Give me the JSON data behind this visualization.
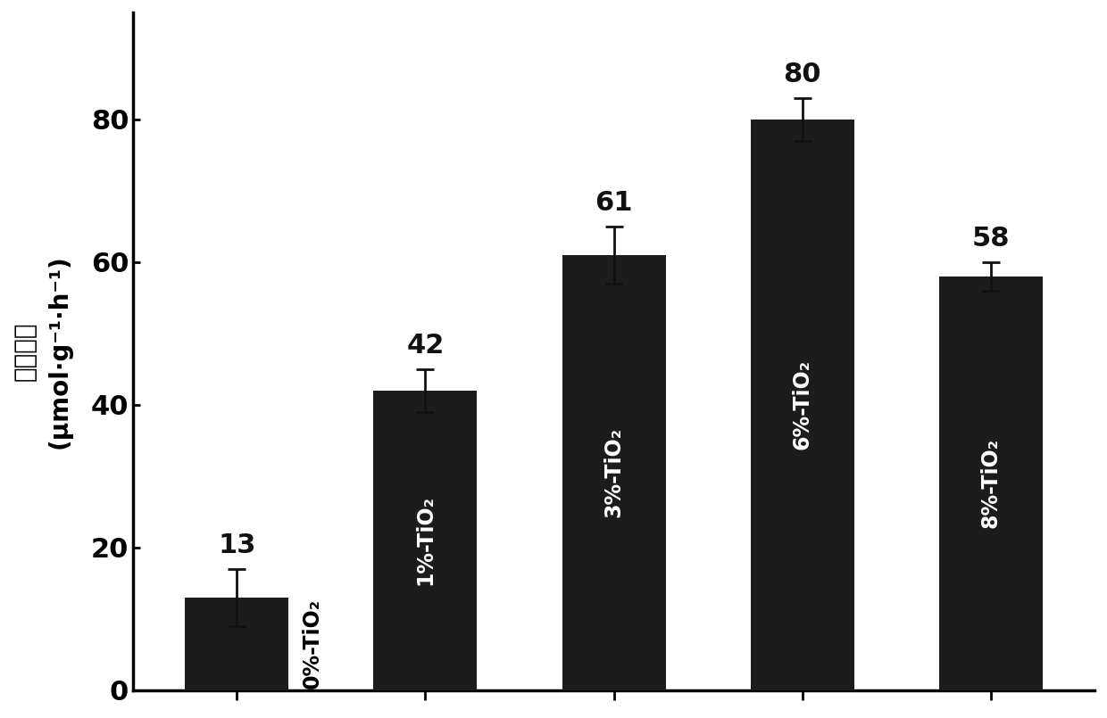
{
  "categories": [
    "0%-TiO₂",
    "1%-TiO₂",
    "3%-TiO₂",
    "6%-TiO₂",
    "8%-TiO₂"
  ],
  "values": [
    13,
    42,
    61,
    80,
    58
  ],
  "errors": [
    4,
    3,
    4,
    3,
    2
  ],
  "bar_color": "#1c1c1c",
  "bar_width": 0.55,
  "ylabel_chinese": "氮的产量",
  "ylabel_english": "(μmol·g⁻¹·h⁻¹)",
  "ylim": [
    0,
    95
  ],
  "yticks": [
    0,
    20,
    40,
    60,
    80
  ],
  "value_labels": [
    "13",
    "42",
    "61",
    "80",
    "58"
  ],
  "background_color": "#ffffff",
  "bar_label_color": "#ffffff",
  "value_label_color": "#111111",
  "errorbar_color": "#111111",
  "tick_fontsize": 22,
  "value_fontsize": 22,
  "bar_text_fontsize": 17,
  "ylabel_fontsize": 20
}
